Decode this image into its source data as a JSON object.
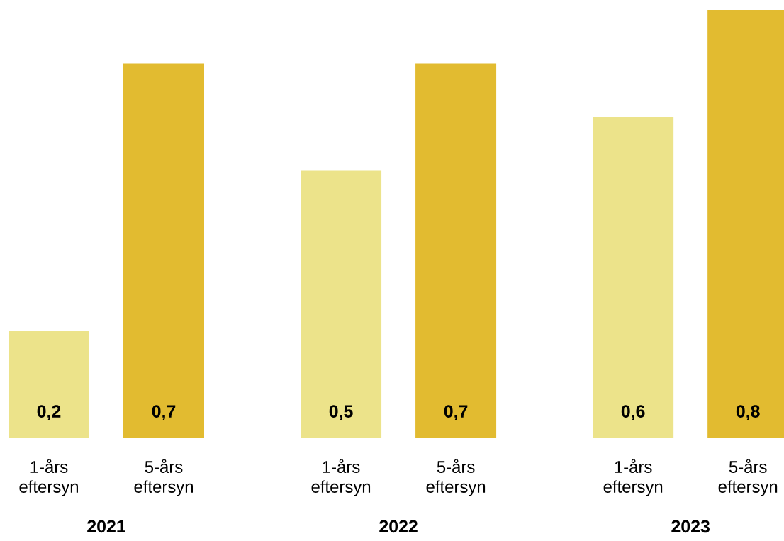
{
  "chart_data": {
    "type": "bar",
    "categories": [
      "2021",
      "2022",
      "2023"
    ],
    "series": [
      {
        "name": "1-års eftersyn",
        "color": "#ece38a",
        "values": [
          0.2,
          0.5,
          0.6
        ],
        "value_labels": [
          "0,2",
          "0,5",
          "0,6"
        ]
      },
      {
        "name": "5-års eftersyn",
        "color": "#e2bb30",
        "values": [
          0.7,
          0.7,
          0.8
        ],
        "value_labels": [
          "0,7",
          "0,7",
          "0,8"
        ]
      }
    ]
  }
}
